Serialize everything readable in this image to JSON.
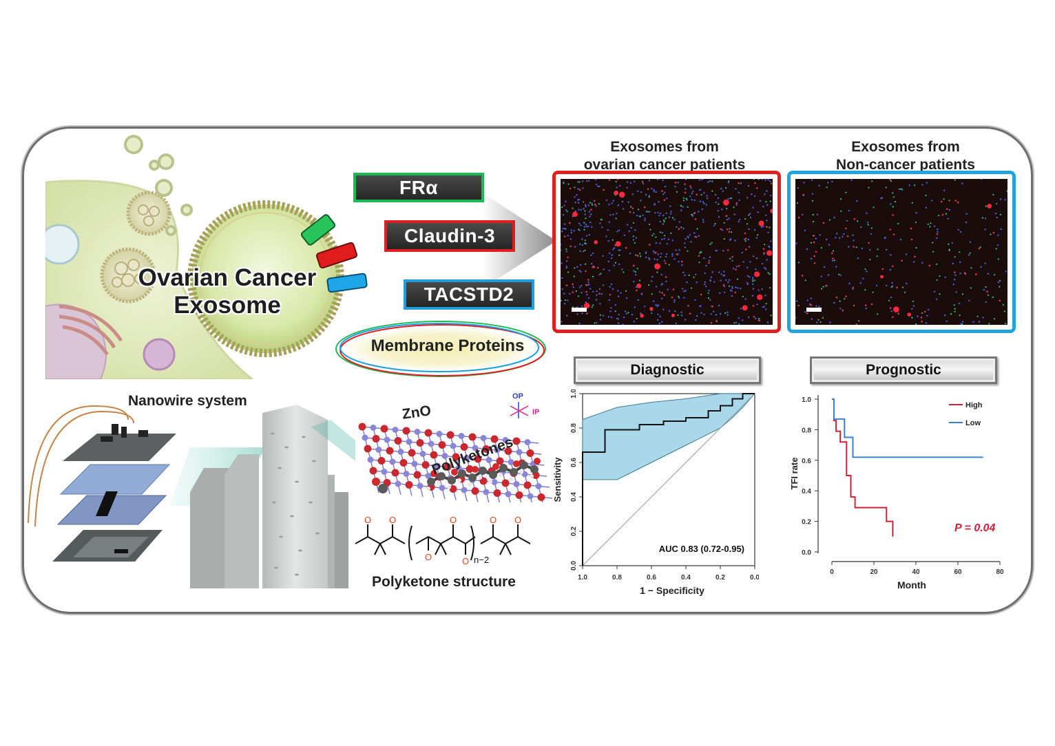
{
  "exosome": {
    "title_line1": "Ovarian Cancer",
    "title_line2": "Exosome"
  },
  "markers": [
    {
      "label": "FRα",
      "color": "#1db954"
    },
    {
      "label": "Claudin-3",
      "color": "#e01e1e"
    },
    {
      "label": "TACSTD2",
      "color": "#1c9fe0"
    }
  ],
  "membrane_label": "Membrane Proteins",
  "microscopy": {
    "cancer_title_line1": "Exosomes from",
    "cancer_title_line2": "ovarian cancer patients",
    "cancer_border_color": "#e01e1e",
    "noncancer_title_line1": "Exosomes from",
    "noncancer_title_line2": "Non-cancer patients",
    "noncancer_border_color": "#22a3dc"
  },
  "nanowire": {
    "title": "Nanowire system",
    "zno_label": "ZnO",
    "op_label": "OP",
    "ip_label": "IP",
    "polyketones_label": "Polyketones",
    "structure_label": "Polyketone structure",
    "subscript": "n−2"
  },
  "diagnostic": {
    "plaque": "Diagnostic",
    "chart_data": {
      "type": "line",
      "xlabel": "1 − Specificity",
      "ylabel": "Sensitivity",
      "x_reversed": true,
      "xlim": [
        1.0,
        0.0
      ],
      "ylim": [
        0.0,
        1.0
      ],
      "x_ticks": [
        "1.0",
        "0.8",
        "0.6",
        "0.4",
        "0.2",
        "0.0"
      ],
      "y_ticks": [
        "0.0",
        "0.2",
        "0.4",
        "0.6",
        "0.8",
        "1.0"
      ],
      "annotation": "AUC 0.83 (0.72-0.95)",
      "roc_curve": {
        "specificity": [
          1.0,
          1.0,
          1.0,
          0.87,
          0.87,
          0.67,
          0.67,
          0.53,
          0.53,
          0.4,
          0.4,
          0.27,
          0.27,
          0.2,
          0.2,
          0.13,
          0.13,
          0.07,
          0.07,
          0.0
        ],
        "sensitivity": [
          0.0,
          0.5,
          0.66,
          0.66,
          0.79,
          0.79,
          0.82,
          0.82,
          0.84,
          0.84,
          0.86,
          0.86,
          0.9,
          0.9,
          0.93,
          0.93,
          0.97,
          0.97,
          1.0,
          1.0
        ]
      },
      "ci_band": {
        "specificity": [
          1.0,
          0.8,
          0.6,
          0.4,
          0.2,
          0.13,
          0.07,
          0.0
        ],
        "upper": [
          0.85,
          0.92,
          0.95,
          0.97,
          1.0,
          1.0,
          1.0,
          1.0
        ],
        "lower": [
          0.5,
          0.5,
          0.6,
          0.7,
          0.8,
          0.86,
          0.92,
          1.0
        ]
      },
      "reference_line": true,
      "band_color": "#a9d8ea"
    }
  },
  "prognostic": {
    "plaque": "Prognostic",
    "chart_data": {
      "type": "line",
      "xlabel": "Month",
      "ylabel": "TFI rate",
      "xlim": [
        0,
        80
      ],
      "ylim": [
        0.0,
        1.0
      ],
      "x_ticks": [
        "0",
        "20",
        "40",
        "60",
        "80"
      ],
      "y_ticks": [
        "0.0",
        "0.2",
        "0.4",
        "0.6",
        "0.8",
        "1.0"
      ],
      "series": [
        {
          "name": "High",
          "color": "#d0213b",
          "x": [
            0,
            1,
            1,
            2,
            2,
            4,
            4,
            7,
            7,
            9,
            9,
            11,
            11,
            26,
            26,
            29,
            29
          ],
          "y": [
            1.0,
            1.0,
            0.86,
            0.86,
            0.79,
            0.79,
            0.72,
            0.72,
            0.5,
            0.5,
            0.36,
            0.36,
            0.29,
            0.29,
            0.2,
            0.2,
            0.1
          ]
        },
        {
          "name": "Low",
          "color": "#3b7fd6",
          "x": [
            0,
            1,
            1,
            6,
            6,
            10,
            10,
            12,
            12,
            72
          ],
          "y": [
            1.0,
            1.0,
            0.87,
            0.87,
            0.75,
            0.75,
            0.62,
            0.62,
            0.62,
            0.62
          ]
        }
      ],
      "annotation": "P = 0.04",
      "annotation_color": "#d0213b"
    }
  }
}
